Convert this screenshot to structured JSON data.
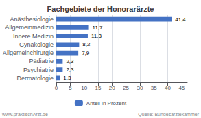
{
  "chart_data": {
    "type": "bar",
    "orientation": "horizontal",
    "title": "Fachgebiete der Honorarärzte",
    "categories": [
      "Anästhesiologie",
      "Allgemeinmedizin",
      "Innere Medizin",
      "Gynäkologie",
      "Allgemeinchirurgie",
      "Pädiatrie",
      "Psychiatrie",
      "Dermatologie"
    ],
    "series": [
      {
        "name": "Anteil in Prozent",
        "color": "#4472C4",
        "values": [
          41.4,
          11.7,
          11.3,
          8.2,
          7.9,
          2.3,
          2.3,
          1.3
        ],
        "value_labels": [
          "41,4",
          "11,7",
          "11,3",
          "8,2",
          "7,9",
          "2,3",
          "2,3",
          "1,3"
        ]
      }
    ],
    "xlim": [
      0,
      47
    ],
    "xticks": [
      0,
      5,
      10,
      15,
      20,
      25,
      30,
      35,
      40,
      45
    ],
    "grid": true,
    "data_labels": true,
    "legend": "bottom",
    "annotations": [
      "www.praktischArzt.de",
      "Quelle: Bundesärztekammer"
    ]
  }
}
